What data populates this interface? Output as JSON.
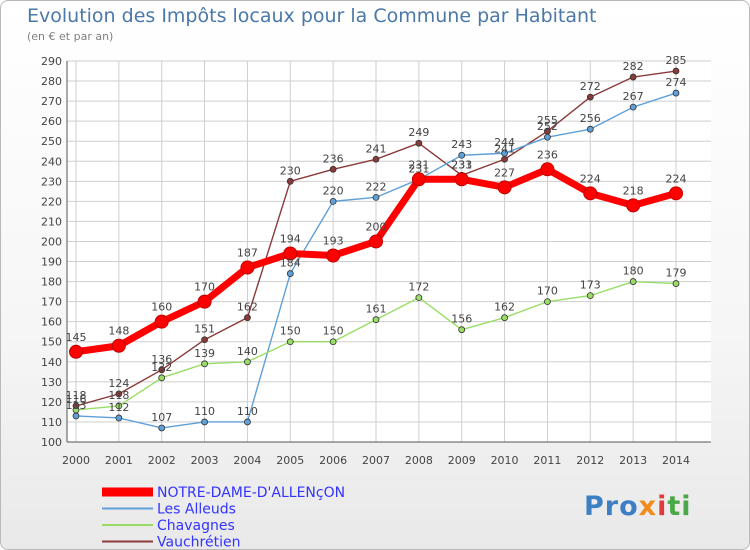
{
  "colors": {
    "notre_dame": "#ff0000",
    "les_alleuds": "#5fa0d8",
    "chavagnes": "#99dd66",
    "vauchretien": "#8b3a3a",
    "grid": "#cfcfcf",
    "legend_text": "#3333ff"
  },
  "logo": {
    "p1": "Pro",
    "p2": "x",
    "p3": "i",
    "p4": "ti"
  },
  "chart_data": {
    "type": "line",
    "title": "Evolution des Impôts locaux pour la Commune par Habitant",
    "subtitle": "(en € et par an)",
    "x": [
      2000,
      2001,
      2002,
      2003,
      2004,
      2005,
      2006,
      2007,
      2008,
      2009,
      2010,
      2011,
      2012,
      2013,
      2014
    ],
    "ylim": [
      100,
      290
    ],
    "yticks": [
      100,
      110,
      120,
      130,
      140,
      150,
      160,
      170,
      180,
      190,
      200,
      210,
      220,
      230,
      240,
      250,
      260,
      270,
      280,
      290
    ],
    "grid": true,
    "legend_position": "bottom-left",
    "series": [
      {
        "name": "NOTRE-DAME-D'ALLENçON",
        "key": "notre_dame",
        "values": [
          145,
          148,
          160,
          170,
          187,
          194,
          193,
          200,
          231,
          231,
          227,
          236,
          224,
          218,
          224
        ]
      },
      {
        "name": "Les Alleuds",
        "key": "les_alleuds",
        "values": [
          113,
          112,
          107,
          110,
          110,
          184,
          220,
          222,
          231,
          243,
          244,
          252,
          256,
          267,
          274
        ]
      },
      {
        "name": "Chavagnes",
        "key": "chavagnes",
        "values": [
          116,
          118,
          132,
          139,
          140,
          150,
          150,
          161,
          172,
          156,
          162,
          170,
          173,
          180,
          179
        ]
      },
      {
        "name": "Vauchrétien",
        "key": "vauchretien",
        "values": [
          118,
          124,
          136,
          151,
          162,
          230,
          236,
          241,
          249,
          233,
          241,
          255,
          272,
          282,
          285
        ]
      }
    ]
  }
}
